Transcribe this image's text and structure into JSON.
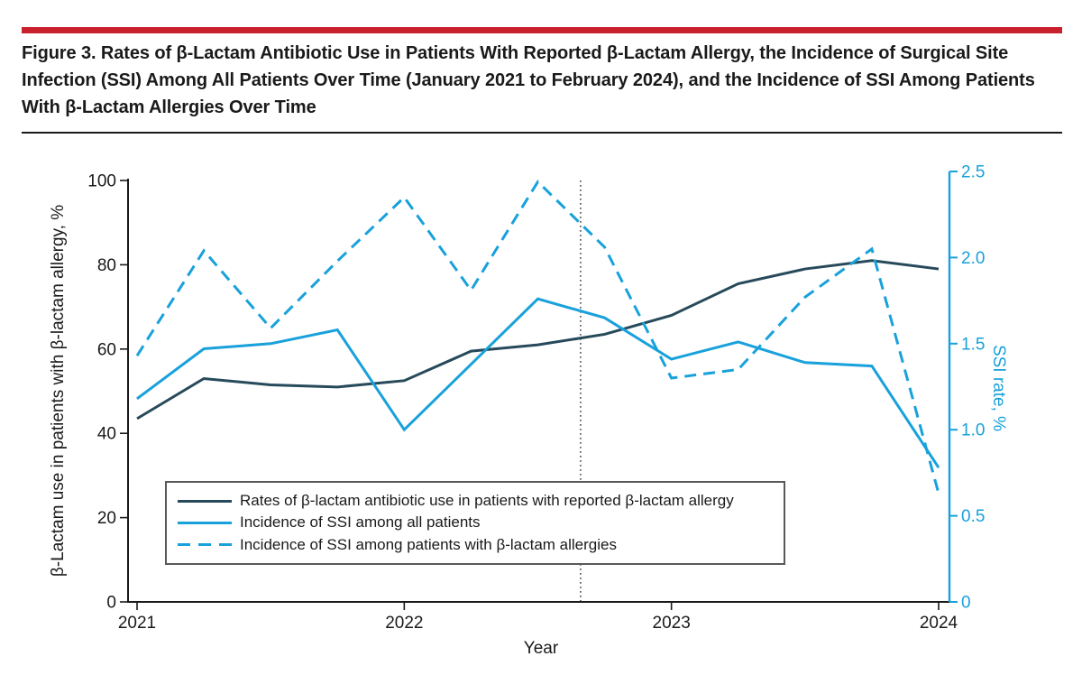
{
  "figure": {
    "title": "Figure 3. Rates of β-Lactam Antibiotic Use in Patients With Reported β-Lactam Allergy, the Incidence of Surgical Site Infection (SSI) Among All Patients Over Time (January 2021 to February 2024), and the Incidence of SSI Among Patients With β-Lactam Allergies Over Time"
  },
  "colors": {
    "accent_red": "#c9202e",
    "navy": "#274a5b",
    "cyan": "#18a1db",
    "axis_dark": "#1a1a1a",
    "vline": "#3a3a3a",
    "legend_border": "#58595b"
  },
  "chart_data": {
    "type": "line",
    "xlabel": "Year",
    "ylabel_left": "β-Lactam use in patients with β-lactam allergy, %",
    "ylabel_right": "SSI rate, %",
    "x": [
      2021.0,
      2021.25,
      2021.5,
      2021.75,
      2022.0,
      2022.25,
      2022.5,
      2022.75,
      2023.0,
      2023.25,
      2023.5,
      2023.75,
      2024.0
    ],
    "series": [
      {
        "name": "Rates of β-lactam antibiotic use in patients with reported β-lactam allergy",
        "axis": "left",
        "style": "solid",
        "color_key": "navy",
        "values": [
          43.5,
          53,
          51.5,
          51,
          52.5,
          59.5,
          61,
          63.5,
          68,
          75.5,
          79,
          81,
          79
        ]
      },
      {
        "name": "Incidence of SSI among all patients",
        "axis": "right",
        "style": "solid",
        "color_key": "cyan",
        "values": [
          1.18,
          1.47,
          1.5,
          1.58,
          1.0,
          1.38,
          1.76,
          1.65,
          1.41,
          1.51,
          1.39,
          1.37,
          0.78
        ]
      },
      {
        "name": "Incidence of SSI among patients with β-lactam allergies",
        "axis": "right",
        "style": "dashed",
        "color_key": "cyan",
        "values": [
          1.43,
          2.04,
          1.59,
          1.98,
          2.35,
          1.81,
          2.44,
          2.06,
          1.3,
          1.35,
          1.77,
          2.05,
          0.63
        ]
      }
    ],
    "x_tick_labels": [
      "2021",
      "2022",
      "2023",
      "2024"
    ],
    "x_tick_values": [
      2021,
      2022,
      2023,
      2024
    ],
    "left_tick_labels": [
      "0",
      "20",
      "40",
      "60",
      "80",
      "100"
    ],
    "left_tick_values": [
      0,
      20,
      40,
      60,
      80,
      100
    ],
    "right_tick_labels": [
      "0",
      "0.5",
      "1.0",
      "1.5",
      "2.0",
      "2.5"
    ],
    "right_tick_values": [
      0,
      0.5,
      1.0,
      1.5,
      2.0,
      2.5
    ],
    "left_range": [
      0,
      100
    ],
    "right_range": [
      0,
      2.5
    ],
    "vline_x": 2022.66,
    "grid": false,
    "legend_position": "lower-left"
  }
}
